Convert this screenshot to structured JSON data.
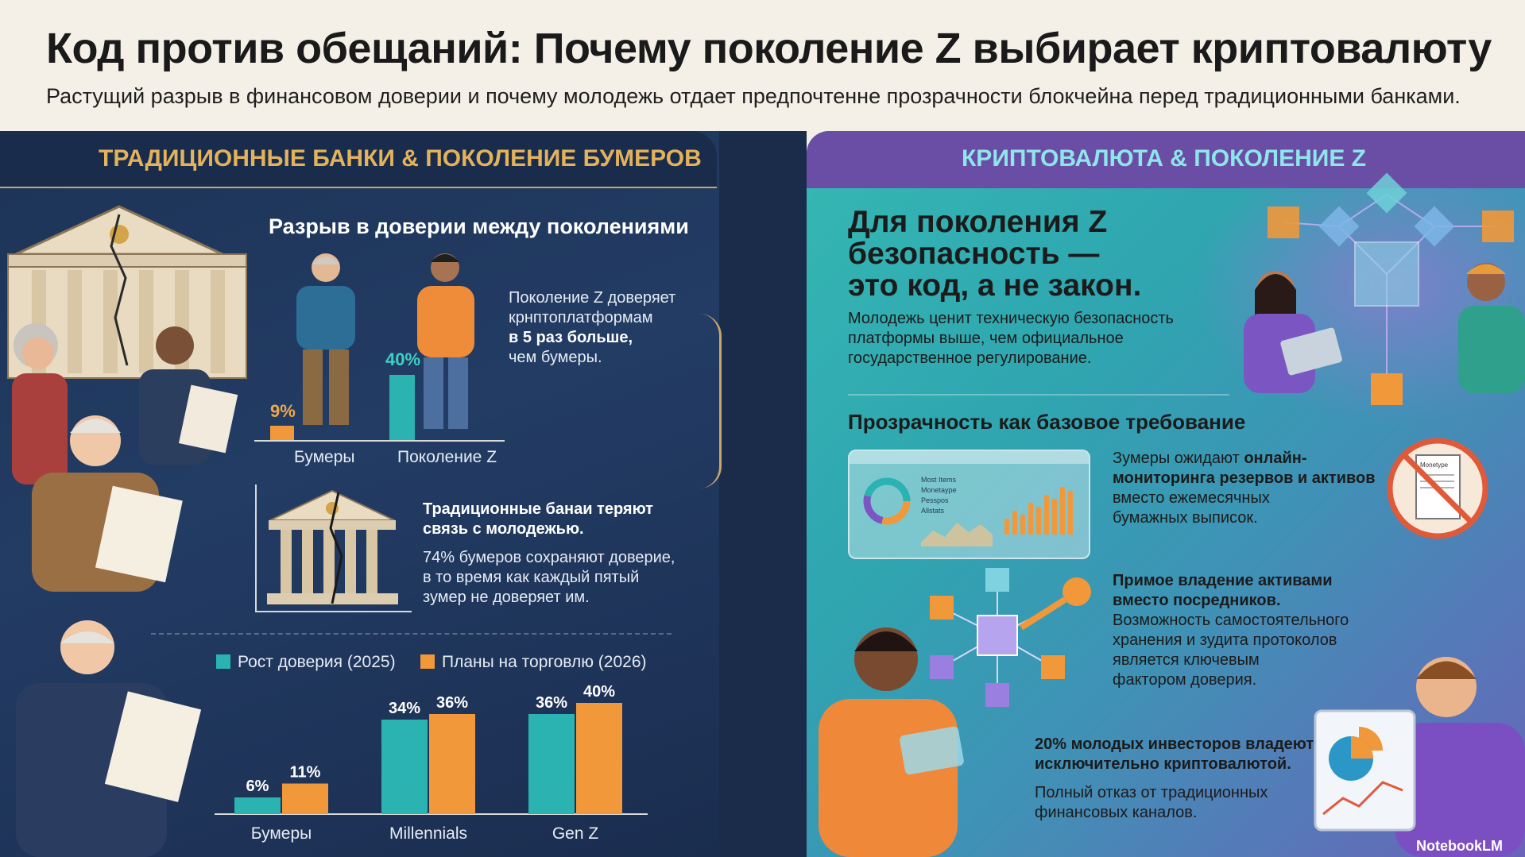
{
  "header": {
    "title": "Код против обещаний: Почему поколение Z выбирает криптовалюту",
    "subtitle": "Растущий разрыв в финансовом доверии и почему молодежь отдает предпочтенне прозрачности блокчейна перед традиционными банками."
  },
  "left": {
    "heading": "ТРАДИЦИОННЫЕ БАНКИ & ПОКОЛЕНИЕ БУМЕРОВ",
    "trust_gap": {
      "title": "Разрыв в доверии между поколениями",
      "boomers_value": "9%",
      "genz_value": "40%",
      "boomers_label": "Бумеры",
      "genz_label": "Поколение Z",
      "note_line1": "Поколение Z доверяет",
      "note_line2": "крнптоплатформам",
      "note_line3": "в 5 раз больше,",
      "note_line4": "чем бумеры."
    },
    "banks": {
      "bold_line1": "Традиционные банаи теряют",
      "bold_line2": "связь с молодежью.",
      "line1": "74% бумеров сохраняют доверие,",
      "line2": "в то время как каждый пятый",
      "line3": "зумер не доверяет им."
    }
  },
  "chart_data": {
    "type": "bar",
    "categories": [
      "Бумеры",
      "Millennials",
      "Gen Z"
    ],
    "series": [
      {
        "name": "Рост доверия (2025)",
        "values": [
          6,
          34,
          36
        ],
        "labels": [
          "6%",
          "34%",
          "36%"
        ],
        "color": "#2bb3b1"
      },
      {
        "name": "Планы на торговлю (2026)",
        "values": [
          11,
          36,
          40
        ],
        "labels": [
          "11%",
          "36%",
          "40%"
        ],
        "color": "#f0983a"
      }
    ],
    "ylim": [
      0,
      40
    ]
  },
  "right": {
    "heading": "КРИПТОВАЛЮТА & ПОКОЛЕНИЕ Z",
    "headline_line1": "Для поколения Z",
    "headline_line2": "безопасность —",
    "headline_line3": "это код, а не закон.",
    "intro_line1": "Молодежь ценит техническую безопасность",
    "intro_line2": "платформы выше, чем официальное",
    "intro_line3": "государственное регулирование.",
    "transparency_title": "Прозрачность как базовое требование",
    "monitor_line1": "Зумеры ожидают",
    "monitor_bold1": "онлайн-",
    "monitor_bold2": "мониторинга резервов и активов",
    "monitor_line3": "вместо ежемесячных",
    "monitor_line4": "бумажных выписок.",
    "dashboard_items": [
      "Most Items",
      "Monetaype",
      "Pesspos",
      "Allstats"
    ],
    "paper_label": "Monetype",
    "ownership_bold1": "Примое владение активами",
    "ownership_bold2": "вместо посредников.",
    "ownership_line1": "Возможность самостоятельного",
    "ownership_line2": "хранения и зудита протоколов",
    "ownership_line3": "является ключевым",
    "ownership_line4": "фактором доверия.",
    "investors_bold1": "20% молодых инвесторов владеют",
    "investors_bold2": "исключительно криптовалютой.",
    "investors_line1": "Полный отказ от традиционных",
    "investors_line2": "финансовых каналов."
  },
  "watermark": "NotebookLM",
  "colors": {
    "gold": "#c9a56a",
    "teal": "#2bb3b1",
    "orange": "#f0983a",
    "navy": "#1d3457",
    "purple": "#6a4ea6"
  }
}
